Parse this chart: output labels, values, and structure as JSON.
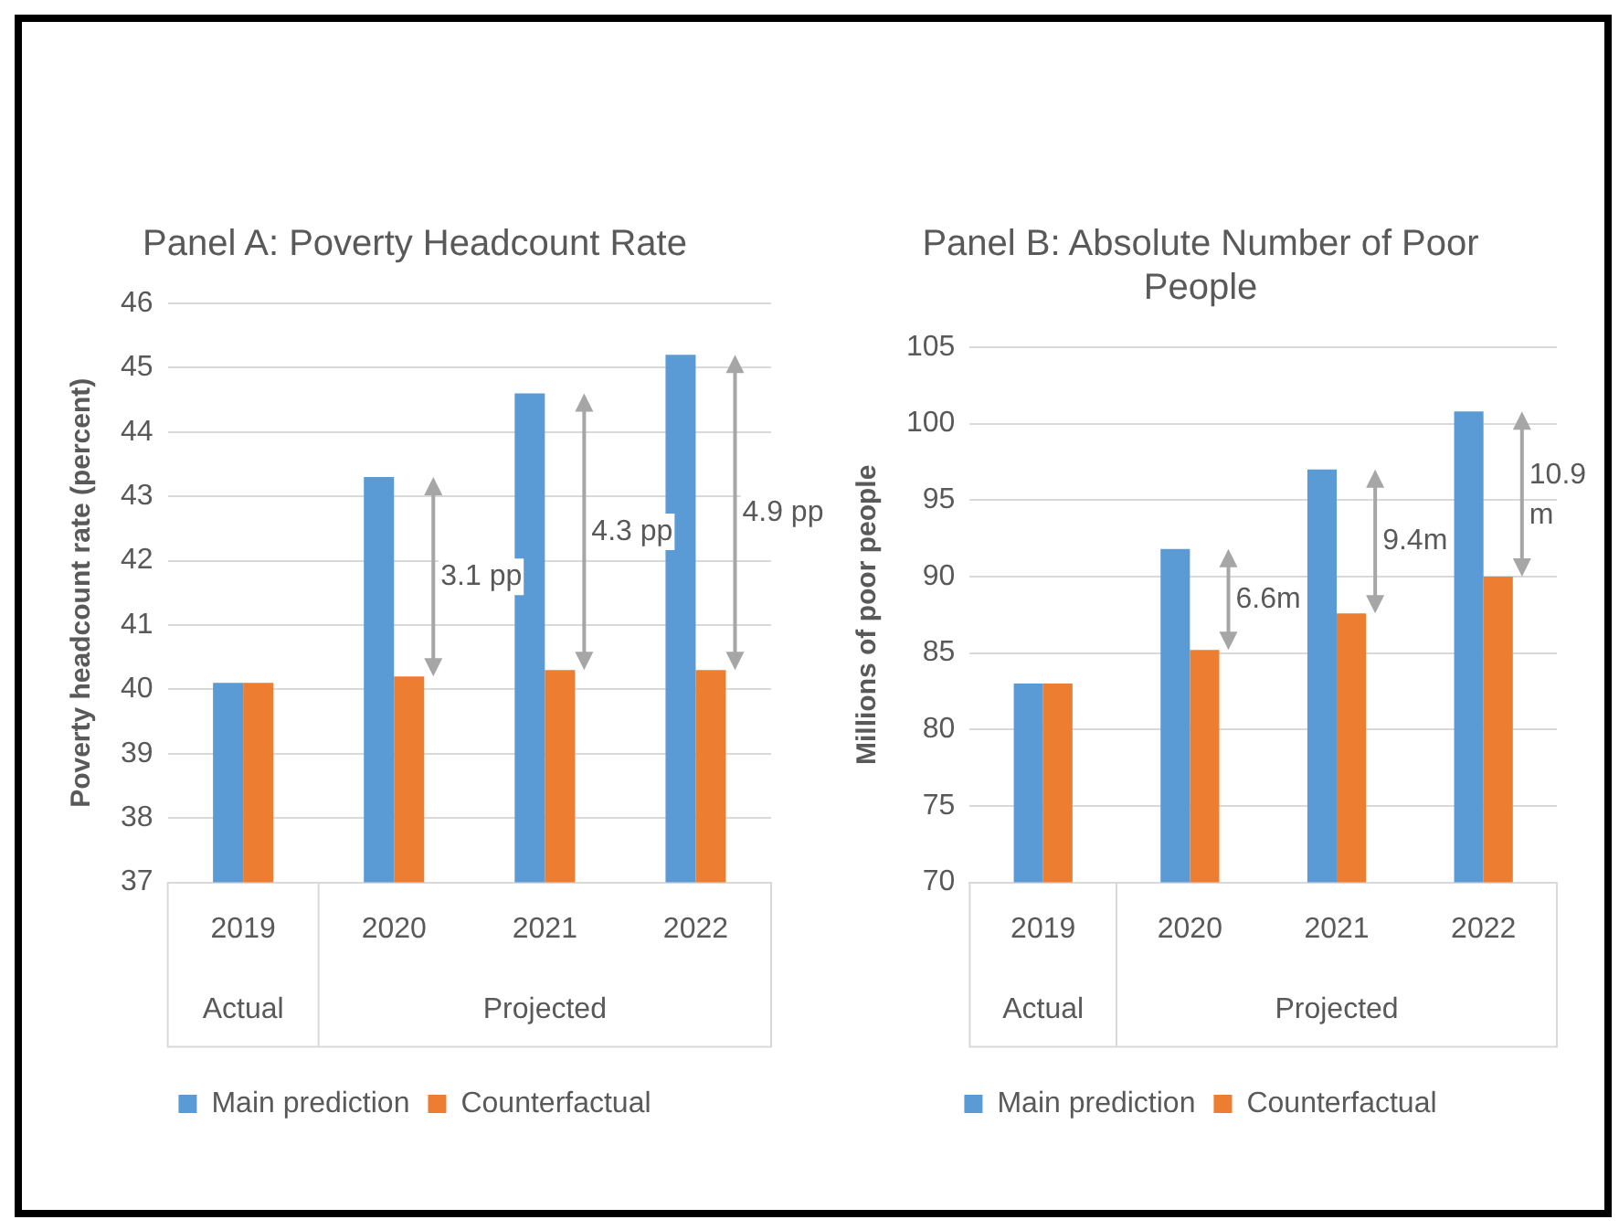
{
  "chart_data": [
    {
      "type": "bar",
      "title": "Panel A: Poverty Headcount Rate",
      "ylabel": "Poverty headcount rate (percent)",
      "categories": [
        "2019",
        "2020",
        "2021",
        "2022"
      ],
      "series": [
        {
          "name": "Main prediction",
          "color": "#5b9bd5",
          "values": [
            40.1,
            43.3,
            44.6,
            45.2
          ]
        },
        {
          "name": "Counterfactual",
          "color": "#ed7d31",
          "values": [
            40.1,
            40.2,
            40.3,
            40.3
          ]
        }
      ],
      "ylim": [
        37,
        46
      ],
      "yticks": [
        37,
        38,
        39,
        40,
        41,
        42,
        43,
        44,
        45,
        46
      ],
      "grid": "y",
      "legend": "bottom",
      "annotations": [
        "3.1 pp",
        "4.3 pp",
        "4.9 pp",
        "Actual",
        "Projected"
      ]
    },
    {
      "type": "bar",
      "title": "Panel B: Absolute Number of Poor People",
      "ylabel": "Millions of poor people",
      "categories": [
        "2019",
        "2020",
        "2021",
        "2022"
      ],
      "series": [
        {
          "name": "Main prediction",
          "color": "#5b9bd5",
          "values": [
            83,
            91.8,
            97,
            100.8
          ]
        },
        {
          "name": "Counterfactual",
          "color": "#ed7d31",
          "values": [
            83,
            85.2,
            87.6,
            90
          ]
        }
      ],
      "ylim": [
        70,
        105
      ],
      "yticks": [
        70,
        75,
        80,
        85,
        90,
        95,
        100,
        105
      ],
      "grid": "y",
      "legend": "bottom",
      "annotations": [
        "6.6m",
        "9.4m",
        "10.9 m",
        "Actual",
        "Projected"
      ]
    }
  ]
}
